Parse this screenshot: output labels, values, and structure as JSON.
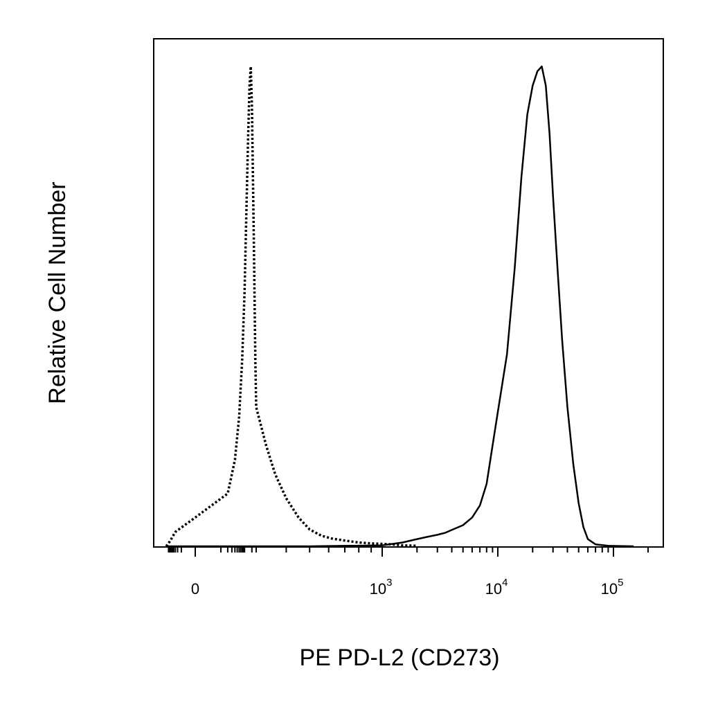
{
  "chart_data": {
    "type": "line",
    "title": "",
    "xlabel": "PE PD-L2 (CD273)",
    "ylabel": "Relative Cell Number",
    "x_scale": "biexponential",
    "xlim": [
      -150,
      200000
    ],
    "ylim": [
      0,
      100
    ],
    "x_ticks": [
      {
        "value": 0,
        "base": "0",
        "exp": ""
      },
      {
        "value": 1000,
        "base": "10",
        "exp": "3"
      },
      {
        "value": 10000,
        "base": "10",
        "exp": "4"
      },
      {
        "value": 100000,
        "base": "10",
        "exp": "5"
      }
    ],
    "grid": false,
    "legend": "none",
    "series": [
      {
        "style": "dotted",
        "color": "#000000",
        "x": [
          -150,
          -80,
          -30,
          0,
          20,
          40,
          60,
          80,
          100,
          120,
          140,
          160,
          180,
          200,
          220,
          240,
          260,
          280,
          300,
          330,
          360,
          400,
          450,
          500,
          560,
          620,
          700,
          800,
          900,
          1000,
          1200,
          1500,
          2000
        ],
        "y": [
          0,
          1,
          3,
          6,
          11,
          18,
          27,
          39,
          53,
          70,
          85,
          96,
          100,
          92,
          78,
          64,
          50,
          38,
          29,
          21,
          15,
          10,
          6,
          3.5,
          2.2,
          1.6,
          1.2,
          0.8,
          0.6,
          0.5,
          0.4,
          0.2,
          0.1
        ]
      },
      {
        "style": "solid",
        "color": "#000000",
        "x": [
          -150,
          500,
          1000,
          1500,
          2000,
          2500,
          3000,
          3500,
          4000,
          5000,
          6000,
          7000,
          8000,
          9000,
          10000,
          12000,
          14000,
          16000,
          18000,
          20000,
          22000,
          24000,
          26000,
          28000,
          30000,
          33000,
          36000,
          40000,
          45000,
          50000,
          55000,
          60000,
          70000,
          90000,
          150000
        ],
        "y": [
          0,
          0,
          0.2,
          0.8,
          1.5,
          2,
          2.4,
          2.8,
          3.4,
          4.4,
          6,
          8.5,
          13,
          21,
          28,
          40,
          58,
          77,
          90,
          96,
          99,
          100,
          96,
          86,
          73,
          57,
          43,
          29,
          17,
          9,
          4,
          1.5,
          0.4,
          0.1,
          0
        ]
      }
    ]
  }
}
